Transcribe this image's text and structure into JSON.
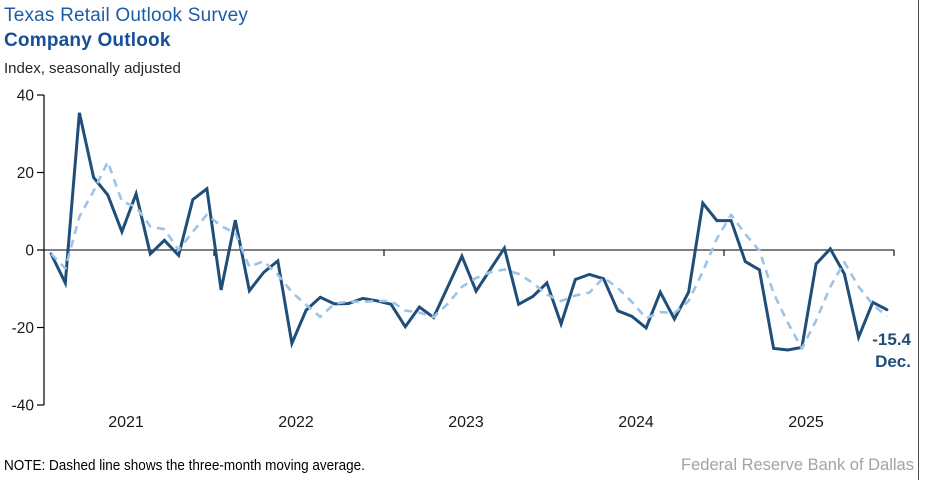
{
  "header": {
    "title": "Texas Retail Outlook Survey",
    "subtitle": "Company Outlook",
    "unit_label": "Index, seasonally adjusted"
  },
  "chart_data": {
    "type": "line",
    "title": "Texas Retail Outlook Survey — Company Outlook",
    "ylabel": "Index, seasonally adjusted",
    "ylim": [
      -40,
      40
    ],
    "yticks": [
      40,
      20,
      0,
      -20,
      -40
    ],
    "x_year_labels": [
      "2021",
      "2022",
      "2023",
      "2024",
      "2025"
    ],
    "frequency": "monthly",
    "x_start": "2021-01",
    "x_end": "2025-12",
    "grid": "off",
    "legend_position": "none",
    "series": [
      {
        "name": "Company outlook index",
        "style": "solid",
        "color": "#1F4E79",
        "values": [
          -1.0,
          -8.5,
          35.4,
          18.7,
          14.2,
          4.7,
          14.5,
          -1.0,
          2.5,
          -1.4,
          13.0,
          15.8,
          -10.3,
          7.7,
          -10.5,
          -5.8,
          -2.8,
          -24.1,
          -15.5,
          -12.2,
          -13.9,
          -13.8,
          -12.5,
          -13.1,
          -14.0,
          -19.8,
          -14.7,
          -17.4,
          -9.5,
          -1.6,
          -10.6,
          -5.0,
          0.5,
          -14.0,
          -12.0,
          -8.5,
          -19.1,
          -7.6,
          -6.3,
          -7.4,
          -15.7,
          -17.1,
          -20.1,
          -10.9,
          -17.8,
          -10.9,
          12.1,
          7.6,
          7.6,
          -3.0,
          -5.1,
          -25.4,
          -25.8,
          -25.1,
          -3.6,
          0.3,
          -6.2,
          -22.5,
          -13.5,
          -15.4
        ]
      },
      {
        "name": "Three-month moving average",
        "style": "dashed",
        "color": "#9DC3E6",
        "derived": "trailing-3-month-average-of-series-0"
      }
    ],
    "annotation": {
      "value_label": "-15.4",
      "month_label": "Dec."
    }
  },
  "footer": {
    "note": "NOTE: Dashed line shows the three-month moving average.",
    "source": "Federal Reserve Bank of Dallas"
  }
}
